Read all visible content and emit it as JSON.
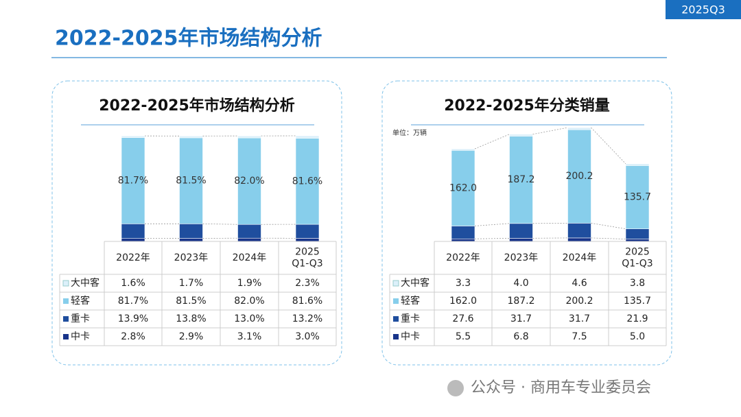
{
  "header": {
    "badge": "2025Q3",
    "title": "2022-2025年市场结构分析"
  },
  "chart_data": [
    {
      "type": "stacked-bar",
      "title": "2022-2025年市场结构分析",
      "categories": [
        "2022年",
        "2023年",
        "2024年",
        "2025\nQ1-Q3"
      ],
      "series": [
        {
          "name": "大中客",
          "color": "#dcf0fa",
          "values": [
            1.6,
            1.7,
            1.9,
            2.3
          ],
          "value_labels": [
            "1.6%",
            "1.7%",
            "1.9%",
            "2.3%"
          ]
        },
        {
          "name": "轻客",
          "color": "#87ceeb",
          "values": [
            81.7,
            81.5,
            82.0,
            81.6
          ],
          "value_labels": [
            "81.7%",
            "81.5%",
            "82.0%",
            "81.6%"
          ],
          "show_labels": true
        },
        {
          "name": "重卡",
          "color": "#1f4e9e",
          "values": [
            13.9,
            13.8,
            13.0,
            13.2
          ],
          "value_labels": [
            "13.9%",
            "13.8%",
            "13.0%",
            "13.2%"
          ]
        },
        {
          "name": "中卡",
          "color": "#18348a",
          "values": [
            2.8,
            2.9,
            3.1,
            3.0
          ],
          "value_labels": [
            "2.8%",
            "2.9%",
            "3.1%",
            "3.0%"
          ]
        }
      ]
    },
    {
      "type": "stacked-bar",
      "title": "2022-2025年分类销量",
      "unit": "单位：万辆",
      "categories": [
        "2022年",
        "2023年",
        "2024年",
        "2025\nQ1-Q3"
      ],
      "series": [
        {
          "name": "大中客",
          "color": "#dcf0fa",
          "values": [
            3.3,
            4.0,
            4.6,
            3.8
          ],
          "value_labels": [
            "3.3",
            "4.0",
            "4.6",
            "3.8"
          ]
        },
        {
          "name": "轻客",
          "color": "#87ceeb",
          "values": [
            162.0,
            187.2,
            200.2,
            135.7
          ],
          "value_labels": [
            "162.0",
            "187.2",
            "200.2",
            "135.7"
          ],
          "show_labels": true
        },
        {
          "name": "重卡",
          "color": "#1f4e9e",
          "values": [
            27.6,
            31.7,
            31.7,
            21.9
          ],
          "value_labels": [
            "27.6",
            "31.7",
            "31.7",
            "21.9"
          ]
        },
        {
          "name": "中卡",
          "color": "#18348a",
          "values": [
            5.5,
            6.8,
            7.5,
            5.0
          ],
          "value_labels": [
            "5.5",
            "6.8",
            "7.5",
            "5.0"
          ]
        }
      ]
    }
  ],
  "footer": "公众号 · 商用车专业委员会"
}
